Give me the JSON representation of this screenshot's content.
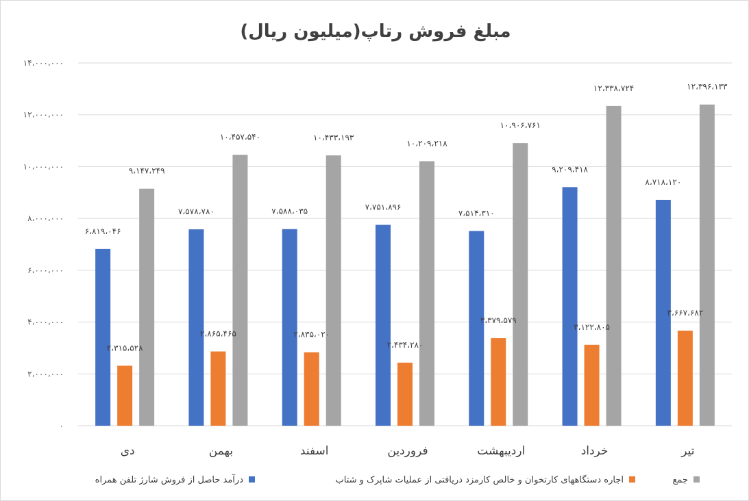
{
  "chart_data": {
    "type": "bar",
    "title": "مبلغ فروش رتاپ(میلیون ریال)",
    "xlabel": "",
    "ylabel": "",
    "ylim": [
      0,
      14000000
    ],
    "grid": true,
    "legend_position": "bottom",
    "categories": [
      "دی",
      "بهمن",
      "اسفند",
      "فروردین",
      "اردیبهشت",
      "خرداد",
      "تیر"
    ],
    "y_ticks": [
      {
        "value": 0,
        "label": "۰"
      },
      {
        "value": 2000000,
        "label": "۲،۰۰۰،۰۰۰"
      },
      {
        "value": 4000000,
        "label": "۴،۰۰۰،۰۰۰"
      },
      {
        "value": 6000000,
        "label": "۶،۰۰۰،۰۰۰"
      },
      {
        "value": 8000000,
        "label": "۸،۰۰۰،۰۰۰"
      },
      {
        "value": 10000000,
        "label": "۱۰،۰۰۰،۰۰۰"
      },
      {
        "value": 12000000,
        "label": "۱۲،۰۰۰،۰۰۰"
      },
      {
        "value": 14000000,
        "label": "۱۴،۰۰۰،۰۰۰"
      }
    ],
    "series": [
      {
        "name": "درآمد حاصل از فروش شارژ تلفن همراه",
        "color": "#4472C4",
        "values": [
          6819046,
          7578780,
          7588035,
          7751896,
          7514310,
          9209418,
          8718120
        ],
        "labels": [
          "۶،۸۱۹،۰۴۶",
          "۷،۵۷۸،۷۸۰",
          "۷،۵۸۸،۰۳۵",
          "۷،۷۵۱،۸۹۶",
          "۷،۵۱۴،۳۱۰",
          "۹،۲۰۹،۴۱۸",
          "۸،۷۱۸،۱۲۰"
        ]
      },
      {
        "name": "اجاره دستگاههای کارتخوان و خالص کارمزد دریافتی از عملیات شاپرک و شتاب",
        "color": "#ED7D31",
        "values": [
          2315528,
          2865465,
          2835020,
          2434280,
          3379579,
          3122805,
          3667682
        ],
        "labels": [
          "۲،۳۱۵،۵۲۸",
          "۲،۸۶۵،۴۶۵",
          "۲،۸۳۵،۰۲۰",
          "۲،۴۳۴،۲۸۰",
          "۳،۳۷۹،۵۷۹",
          "۳،۱۲۲،۸۰۵",
          "۳،۶۶۷،۶۸۲"
        ]
      },
      {
        "name": "جمع",
        "color": "#A5A5A5",
        "values": [
          9147249,
          10457540,
          10433193,
          10209218,
          10906761,
          12338724,
          12396133
        ],
        "labels": [
          "۹،۱۴۷،۲۴۹",
          "۱۰،۴۵۷،۵۴۰",
          "۱۰،۴۳۳،۱۹۳",
          "۱۰،۲۰۹،۲۱۸",
          "۱۰،۹۰۶،۷۶۱",
          "۱۲،۳۳۸،۷۲۴",
          "۱۲،۳۹۶،۱۳۳"
        ]
      }
    ]
  }
}
